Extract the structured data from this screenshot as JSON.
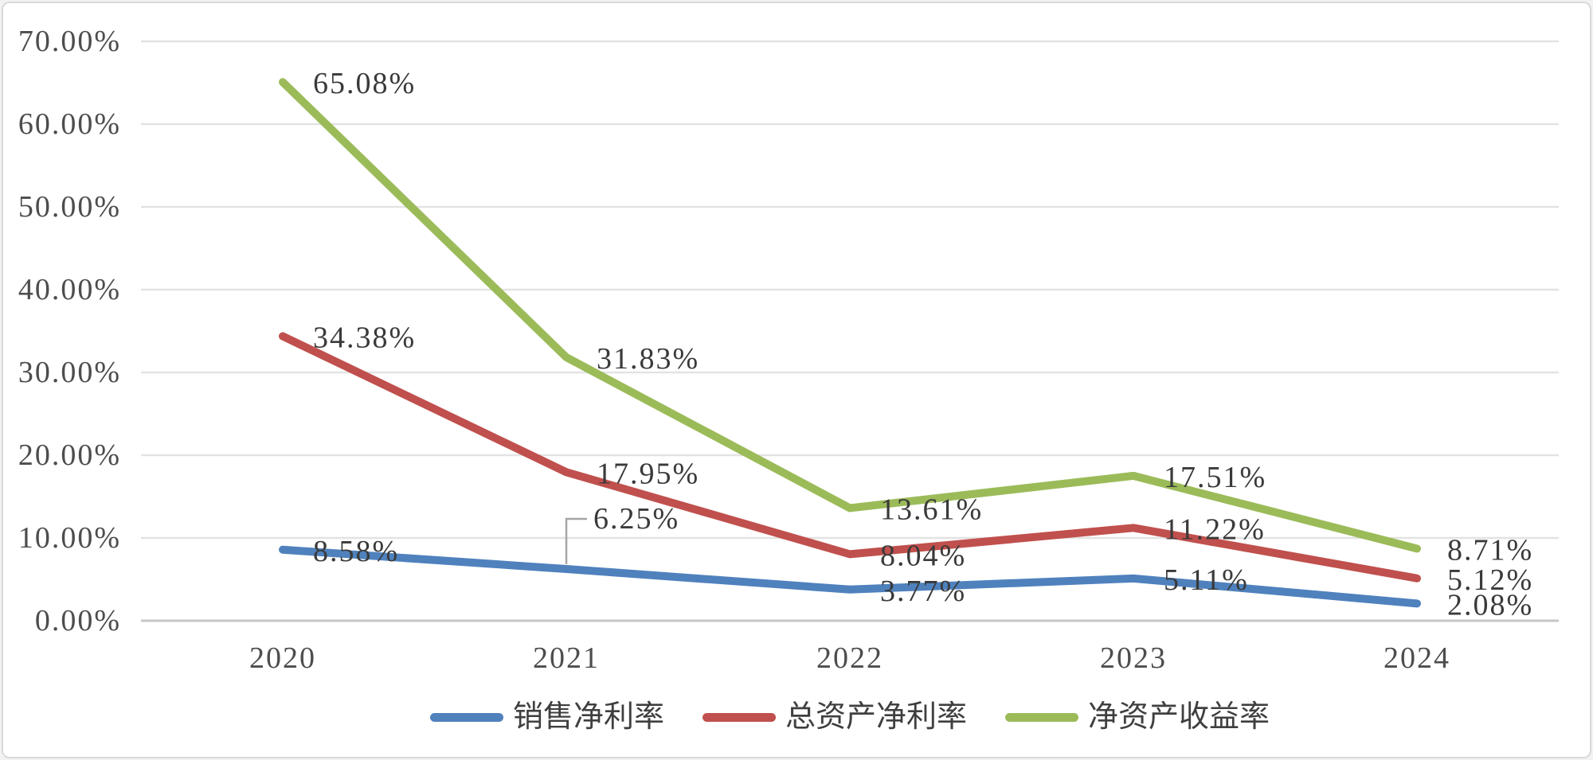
{
  "chart_data": {
    "type": "line",
    "title": "",
    "xlabel": "",
    "ylabel": "",
    "x": [
      "2020",
      "2021",
      "2022",
      "2023",
      "2024"
    ],
    "series": [
      {
        "name": "销售净利率",
        "color": "#4F81BD",
        "values": [
          8.58,
          6.25,
          3.77,
          5.11,
          2.08
        ],
        "labels": [
          "8.58%",
          "6.25%",
          "3.77%",
          "5.11%",
          "2.08%"
        ]
      },
      {
        "name": "总资产净利率",
        "color": "#C0504D",
        "values": [
          34.38,
          17.95,
          8.04,
          11.22,
          5.12
        ],
        "labels": [
          "34.38%",
          "17.95%",
          "8.04%",
          "11.22%",
          "5.12%"
        ]
      },
      {
        "name": "净资产收益率",
        "color": "#9BBB59",
        "values": [
          65.08,
          31.83,
          13.61,
          17.51,
          8.71
        ],
        "labels": [
          "65.08%",
          "31.83%",
          "13.61%",
          "17.51%",
          "8.71%"
        ]
      }
    ],
    "y_ticks": [
      "0.00%",
      "10.00%",
      "20.00%",
      "30.00%",
      "40.00%",
      "50.00%",
      "60.00%",
      "70.00%"
    ],
    "ylim": [
      0,
      70
    ],
    "y_step": 10,
    "grid": true,
    "legend_position": "bottom",
    "label_overrides": [
      {
        "series_index": 0,
        "point_index": 1,
        "dy": -63,
        "leader": true
      }
    ],
    "style_colors": {
      "gridline": "#e3e3e3",
      "axis_line": "#c6c6c6",
      "leader_line": "#a6a6a6",
      "tick_text": "#4d4d4d",
      "label_text": "#3a3a3a",
      "frame_border": "#d9d9d9",
      "background": "#ffffff"
    }
  }
}
